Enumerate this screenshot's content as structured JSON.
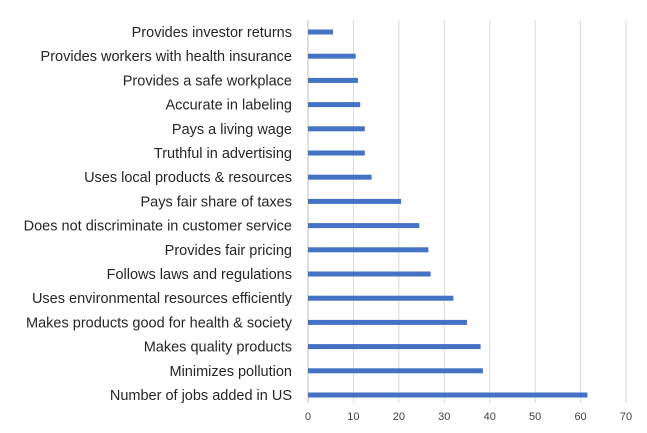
{
  "chart_data": {
    "type": "bar",
    "orientation": "horizontal",
    "title": "",
    "xlabel": "",
    "ylabel": "",
    "xlim": [
      0,
      70
    ],
    "grid": true,
    "ticks": [
      0,
      10,
      20,
      30,
      40,
      50,
      60,
      70
    ],
    "bar_color": "#4472c4",
    "categories": [
      "Provides investor returns",
      "Provides workers with health insurance",
      "Provides a safe workplace",
      "Accurate in labeling",
      "Pays a living wage",
      "Truthful in advertising",
      "Uses local products  & resources",
      "Pays fair share of taxes",
      "Does not discriminate in customer service",
      "Provides fair pricing",
      "Follows laws and regulations",
      "Uses environmental resources efficiently",
      "Makes products  good for health & society",
      "Makes quality products",
      "Minimizes pollution",
      "Number of jobs added in US"
    ],
    "values": [
      5.5,
      10.5,
      11,
      11.5,
      12.5,
      12.5,
      14,
      20.5,
      24.5,
      26.5,
      27,
      32,
      35,
      38,
      38.5,
      61.5
    ]
  }
}
